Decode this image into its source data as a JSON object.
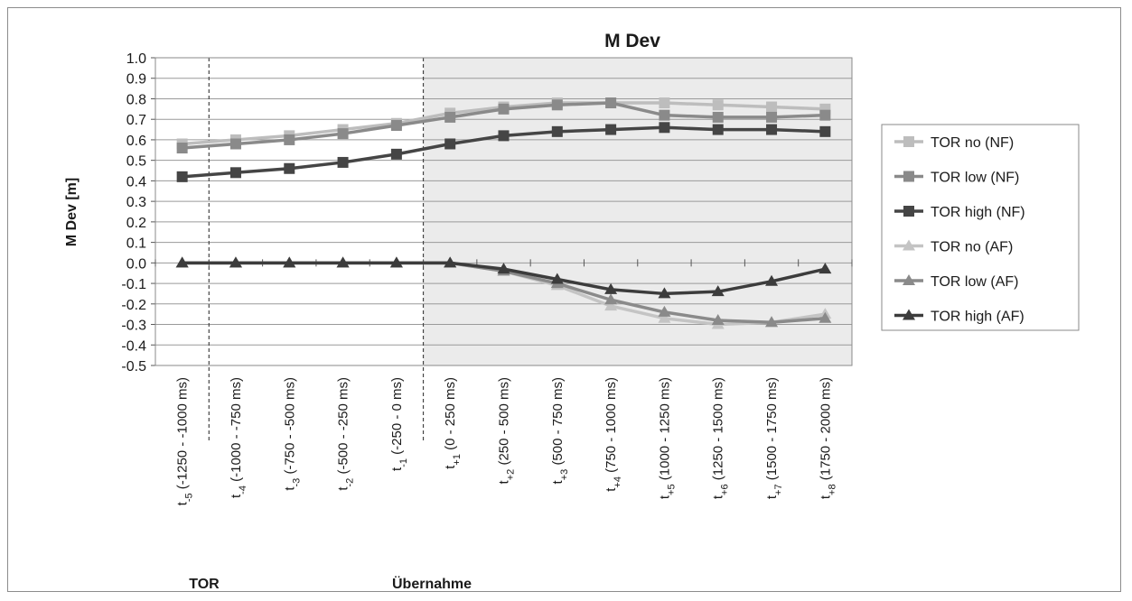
{
  "chart_data": {
    "type": "line",
    "title": "M Dev",
    "ylabel": "M Dev [m]",
    "xlabel": "",
    "ylim": [
      -0.5,
      1.0
    ],
    "ytick_step": 0.1,
    "yticks": [
      "1.0",
      "0.9",
      "0.8",
      "0.7",
      "0.6",
      "0.5",
      "0.4",
      "0.3",
      "0.2",
      "0.1",
      "0.0",
      "-0.1",
      "-0.2",
      "-0.3",
      "-0.4",
      "-0.5"
    ],
    "grid": true,
    "legend_position": "right",
    "categories": [
      {
        "base": "t",
        "sub": "-5",
        "rest": " (-1250 - -1000 ms)"
      },
      {
        "base": "t",
        "sub": "-4",
        "rest": " (-1000 - -750 ms)"
      },
      {
        "base": "t",
        "sub": "-3",
        "rest": " (-750 - -500 ms)"
      },
      {
        "base": "t",
        "sub": "-2",
        "rest": " (-500 - -250 ms)"
      },
      {
        "base": "t",
        "sub": "-1",
        "rest": " (-250 - 0 ms)"
      },
      {
        "base": "t",
        "sub": "+1",
        "rest": " (0 - 250 ms)"
      },
      {
        "base": "t",
        "sub": "+2",
        "rest": " (250 - 500 ms)"
      },
      {
        "base": "t",
        "sub": "+3",
        "rest": " (500 - 750 ms)"
      },
      {
        "base": "t",
        "sub": "+4",
        "rest": " (750 - 1000 ms)"
      },
      {
        "base": "t",
        "sub": "+5",
        "rest": " (1000 - 1250 ms)"
      },
      {
        "base": "t",
        "sub": "+6",
        "rest": " (1250 - 1500 ms)"
      },
      {
        "base": "t",
        "sub": "+7",
        "rest": " (1500 - 1750 ms)"
      },
      {
        "base": "t",
        "sub": "+8",
        "rest": " (1750 - 2000 ms)"
      }
    ],
    "series": [
      {
        "name": "TOR no (NF)",
        "marker": "square",
        "color": "#bdbdbd",
        "values": [
          0.58,
          0.6,
          0.62,
          0.65,
          0.68,
          0.73,
          0.76,
          0.78,
          0.78,
          0.78,
          0.77,
          0.76,
          0.75
        ]
      },
      {
        "name": "TOR low (NF)",
        "marker": "square",
        "color": "#8a8a8a",
        "values": [
          0.56,
          0.58,
          0.6,
          0.63,
          0.67,
          0.71,
          0.75,
          0.77,
          0.78,
          0.72,
          0.71,
          0.71,
          0.72
        ]
      },
      {
        "name": "TOR high (NF)",
        "marker": "square",
        "color": "#454545",
        "values": [
          0.42,
          0.44,
          0.46,
          0.49,
          0.53,
          0.58,
          0.62,
          0.64,
          0.65,
          0.66,
          0.65,
          0.65,
          0.64
        ]
      },
      {
        "name": "TOR no (AF)",
        "marker": "triangle",
        "color": "#c4c4c4",
        "values": [
          0.0,
          0.0,
          0.0,
          0.0,
          0.0,
          0.0,
          -0.04,
          -0.11,
          -0.21,
          -0.27,
          -0.3,
          -0.29,
          -0.25
        ]
      },
      {
        "name": "TOR low (AF)",
        "marker": "triangle",
        "color": "#8a8a8a",
        "values": [
          0.0,
          0.0,
          0.0,
          0.0,
          0.0,
          0.0,
          -0.04,
          -0.1,
          -0.18,
          -0.24,
          -0.28,
          -0.29,
          -0.27
        ]
      },
      {
        "name": "TOR high (AF)",
        "marker": "triangle",
        "color": "#3c3c3c",
        "values": [
          0.0,
          0.0,
          0.0,
          0.0,
          0.0,
          0.0,
          -0.03,
          -0.08,
          -0.13,
          -0.15,
          -0.14,
          -0.09,
          -0.03
        ]
      }
    ],
    "annotations": [
      {
        "label": "TOR",
        "category_index": 0
      },
      {
        "label": "Übernahme",
        "category_index": 5
      }
    ]
  }
}
